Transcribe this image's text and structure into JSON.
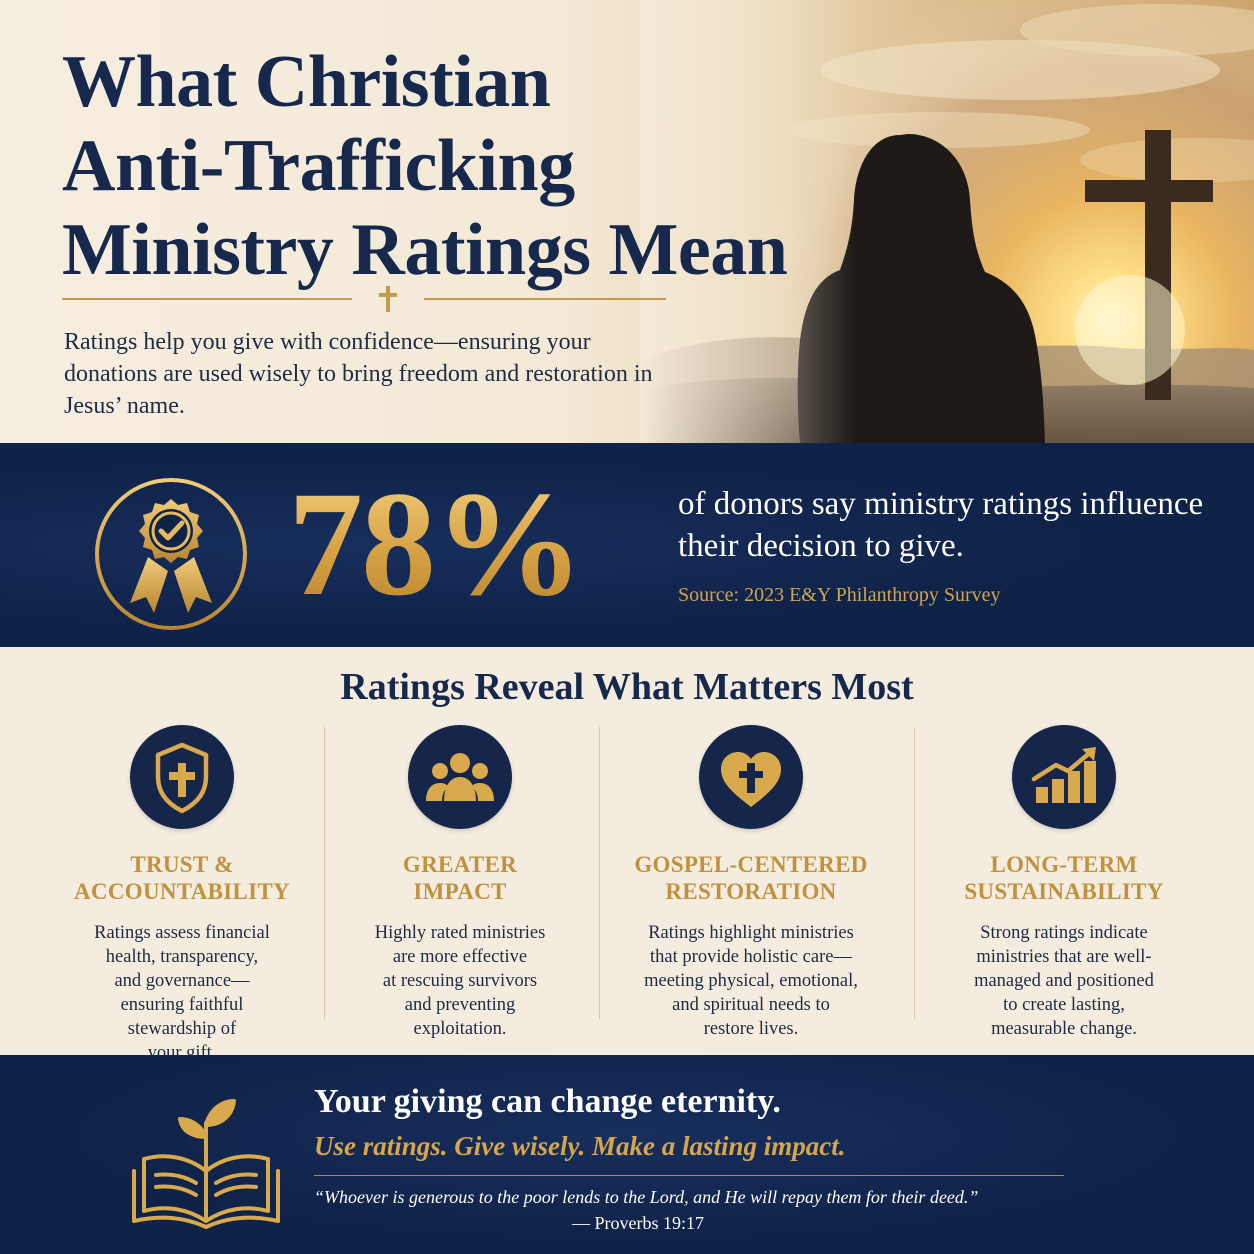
{
  "hero": {
    "title_lines": [
      "What Christian",
      "Anti-Trafficking",
      "Ministry Ratings Mean"
    ],
    "subtitle": "Ratings help you give with confidence—ensuring your donations are used wisely to bring freedom and restoration in Jesus’ name.",
    "photo": "woman-silhouette-facing-cross-at-sunrise"
  },
  "stat": {
    "icon": "award-ribbon-checkmark-icon",
    "value": "78%",
    "text": "of donors say ministry ratings influence their decision to give.",
    "source": "Source: 2023 E&Y Philanthropy Survey"
  },
  "features": {
    "title": "Ratings Reveal What Matters Most",
    "items": [
      {
        "icon": "shield-cross-icon",
        "title": "TRUST &\nACCOUNTABILITY",
        "description": "Ratings assess financial\nhealth, transparency,\nand governance—\nensuring faithful\nstewardship of\nyour gift."
      },
      {
        "icon": "people-group-icon",
        "title": "GREATER\nIMPACT",
        "description": "Highly rated ministries\nare more effective\nat rescuing survivors\nand preventing\nexploitation."
      },
      {
        "icon": "heart-cross-icon",
        "title": "GOSPEL-CENTERED\nRESTORATION",
        "description": "Ratings highlight ministries\nthat provide holistic care—\nmeeting physical, emotional,\nand spiritual needs to\nrestore lives."
      },
      {
        "icon": "growth-chart-icon",
        "title": "LONG-TERM\nSUSTAINABILITY",
        "description": "Strong ratings indicate\nministries that are well-\nmanaged and positioned\nto create lasting,\nmeasurable change."
      }
    ]
  },
  "footer": {
    "icon": "open-bible-sprout-icon",
    "headline": "Your giving can change eternity.",
    "tagline": "Use ratings. Give wisely. Make a lasting impact.",
    "quote": "“Whoever is generous to the poor lends to the Lord, and He will repay them for their deed.”",
    "reference": "— Proverbs 19:17"
  },
  "colors": {
    "navy": "#0f2248",
    "gold": "#c0913e",
    "cream": "#f4ecdf"
  }
}
